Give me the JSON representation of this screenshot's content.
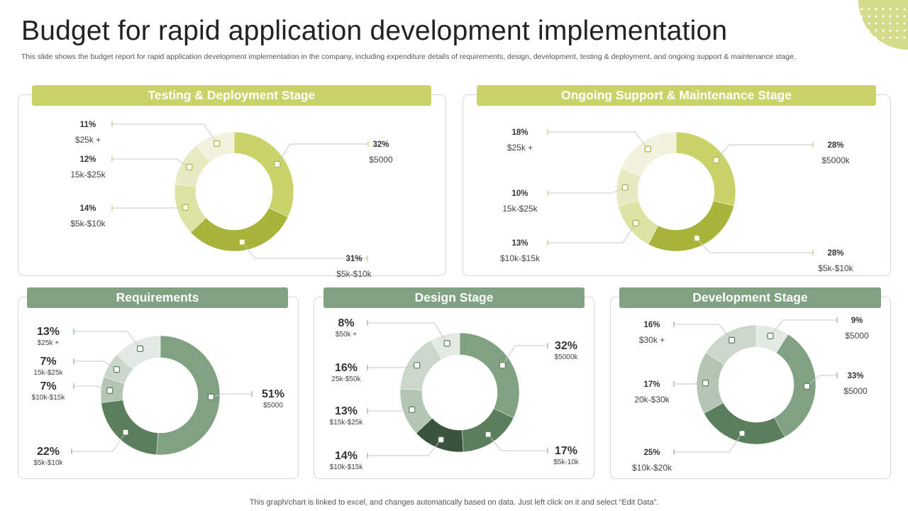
{
  "page": {
    "title": "Budget for rapid application development implementation",
    "subtitle": "This slide shows the budget report for rapid application development implementation in the company, including expenditure details of requirements, design, development, testing & deployment, and ongoing support & maintenance stage.",
    "footer": "This graph/chart is linked to excel,  and changes automatically based on data. Just left click on it and select “Edit Data”."
  },
  "decor": {
    "corner_icon": "dotted-quarter-circle",
    "accent_yellow": "#c9d36a",
    "accent_green": "#80a182"
  },
  "chart_data": [
    {
      "type": "pie",
      "style": "donut",
      "title": "Testing & Deployment Stage",
      "header_color": "#c9d36a",
      "slices": [
        {
          "pct": "32%",
          "value": 32,
          "label": "$5000",
          "color": "#c9d36a"
        },
        {
          "pct": "31%",
          "value": 31,
          "label": "$5k-$10k",
          "color": "#a8b43a"
        },
        {
          "pct": "14%",
          "value": 14,
          "label": "$5k-$10k",
          "color": "#dde3a4"
        },
        {
          "pct": "12%",
          "value": 12,
          "label": "15k-$25k",
          "color": "#e7ebc2"
        },
        {
          "pct": "11%",
          "value": 11,
          "label": "$25k +",
          "color": "#f1f3de"
        }
      ]
    },
    {
      "type": "pie",
      "style": "donut",
      "title": "Ongoing Support & Maintenance Stage",
      "header_color": "#c9d36a",
      "slices": [
        {
          "pct": "28%",
          "value": 28,
          "label": "$5000k",
          "color": "#c9d36a"
        },
        {
          "pct": "28%",
          "value": 28,
          "label": "$5k-$10k",
          "color": "#a8b43a"
        },
        {
          "pct": "13%",
          "value": 13,
          "label": "$10k-$15k",
          "color": "#dde3a4"
        },
        {
          "pct": "10%",
          "value": 10,
          "label": "15k-$25k",
          "color": "#e7ebc2"
        },
        {
          "pct": "18%",
          "value": 18,
          "label": "$25k +",
          "color": "#f1f3de"
        }
      ]
    },
    {
      "type": "pie",
      "style": "donut",
      "title": "Requirements",
      "header_color": "#80a182",
      "slices": [
        {
          "pct": "51%",
          "value": 51,
          "label": "$5000",
          "color": "#80a182"
        },
        {
          "pct": "22%",
          "value": 22,
          "label": "$5k-$10k",
          "color": "#5b7e5c"
        },
        {
          "pct": "7%",
          "value": 7,
          "label": "$10k-$15k",
          "color": "#b3c6b3"
        },
        {
          "pct": "7%",
          "value": 7,
          "label": "15k-$25k",
          "color": "#cad7ca"
        },
        {
          "pct": "13%",
          "value": 13,
          "label": "$25k +",
          "color": "#e3e9e3"
        }
      ]
    },
    {
      "type": "pie",
      "style": "donut",
      "title": "Design Stage",
      "header_color": "#80a182",
      "slices": [
        {
          "pct": "32%",
          "value": 32,
          "label": "$5000k",
          "color": "#80a182"
        },
        {
          "pct": "17%",
          "value": 17,
          "label": "$5k-10k",
          "color": "#5b7e5c"
        },
        {
          "pct": "14%",
          "value": 14,
          "label": "$10k-$15k",
          "color": "#3b523c"
        },
        {
          "pct": "13%",
          "value": 13,
          "label": "$15k-$25k",
          "color": "#b3c6b3"
        },
        {
          "pct": "16%",
          "value": 16,
          "label": "25k-$50k",
          "color": "#cad7ca"
        },
        {
          "pct": "8%",
          "value": 8,
          "label": "$50k +",
          "color": "#e3e9e3"
        }
      ]
    },
    {
      "type": "pie",
      "style": "donut",
      "title": "Development Stage",
      "header_color": "#80a182",
      "slices": [
        {
          "pct": "9%",
          "value": 9,
          "label": "$5000",
          "color": "#e3e9e3"
        },
        {
          "pct": "33%",
          "value": 33,
          "label": "$5000",
          "color": "#80a182"
        },
        {
          "pct": "25%",
          "value": 25,
          "label": "$10k-$20k",
          "color": "#5b7e5c"
        },
        {
          "pct": "17%",
          "value": 17,
          "label": "20k-$30k",
          "color": "#b3c6b3"
        },
        {
          "pct": "16%",
          "value": 16,
          "label": "$30k +",
          "color": "#cad7ca"
        }
      ]
    }
  ]
}
